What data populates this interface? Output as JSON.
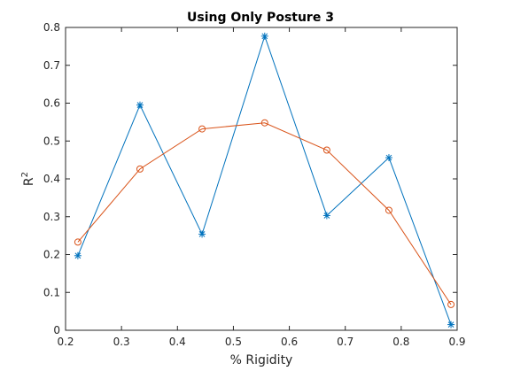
{
  "chart_data": {
    "type": "line",
    "title": "Using Only Posture 3",
    "xlabel": "% Rigidity",
    "ylabel": "R",
    "ylabel_superscript": "2",
    "xlim": [
      0.2,
      0.9
    ],
    "ylim": [
      0,
      0.8
    ],
    "xticks": [
      "0.2",
      "0.3",
      "0.4",
      "0.5",
      "0.6",
      "0.7",
      "0.8",
      "0.9"
    ],
    "yticks": [
      "0",
      "0.1",
      "0.2",
      "0.3",
      "0.4",
      "0.5",
      "0.6",
      "0.7",
      "0.8"
    ],
    "grid": false,
    "x": [
      0.222,
      0.333,
      0.444,
      0.556,
      0.667,
      0.778,
      0.889
    ],
    "series": [
      {
        "color": "#0072BD",
        "marker": "asterisk",
        "values": [
          0.197,
          0.595,
          0.254,
          0.777,
          0.303,
          0.456,
          0.015
        ]
      },
      {
        "color": "#D95319",
        "marker": "circle",
        "values": [
          0.233,
          0.426,
          0.532,
          0.548,
          0.476,
          0.317,
          0.068
        ]
      }
    ]
  }
}
